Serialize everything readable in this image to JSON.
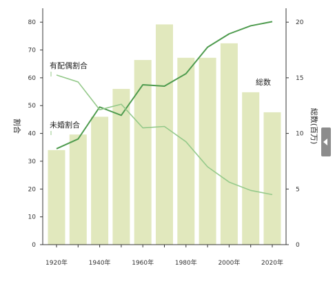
{
  "chart_data": {
    "type": "bar+line",
    "categories": [
      "1920",
      "1930",
      "1940",
      "1950",
      "1960",
      "1970",
      "1980",
      "1990",
      "2000",
      "2010",
      "2020"
    ],
    "x_tick_labels": [
      "1920年",
      "1940年",
      "1960年",
      "1980年",
      "2000年",
      "2020年"
    ],
    "y_left": {
      "label": "割合",
      "ticks": [
        "0",
        "10",
        "20",
        "30",
        "40",
        "50",
        "60",
        "70",
        "80"
      ],
      "range": [
        0,
        85
      ]
    },
    "y_right": {
      "label": "総数(百万)",
      "ticks": [
        "0",
        "5",
        "10",
        "15",
        "20"
      ],
      "range": [
        0,
        21.25
      ]
    },
    "bars": {
      "name": "総数",
      "axis": "right",
      "color": "#e1e8bd",
      "values": [
        8.5,
        9.9,
        11.5,
        14.0,
        16.6,
        19.8,
        16.8,
        16.8,
        18.1,
        13.7,
        11.9
      ]
    },
    "lines": [
      {
        "name": "有配偶割合",
        "axis": "left",
        "color": "#4e9b4e",
        "values": [
          34.5,
          38.0,
          49.5,
          46.5,
          57.5,
          57.0,
          61.5,
          71.0,
          75.8,
          78.7,
          80.2
        ]
      },
      {
        "name": "未婚割合",
        "axis": "left",
        "color": "#94c98a",
        "values": [
          61.0,
          58.5,
          48.5,
          50.5,
          42.0,
          42.5,
          37.0,
          28.0,
          22.5,
          19.5,
          18.0
        ]
      }
    ],
    "grid": false
  },
  "ui": {
    "side_tab_icon": "chevron-left-icon"
  }
}
